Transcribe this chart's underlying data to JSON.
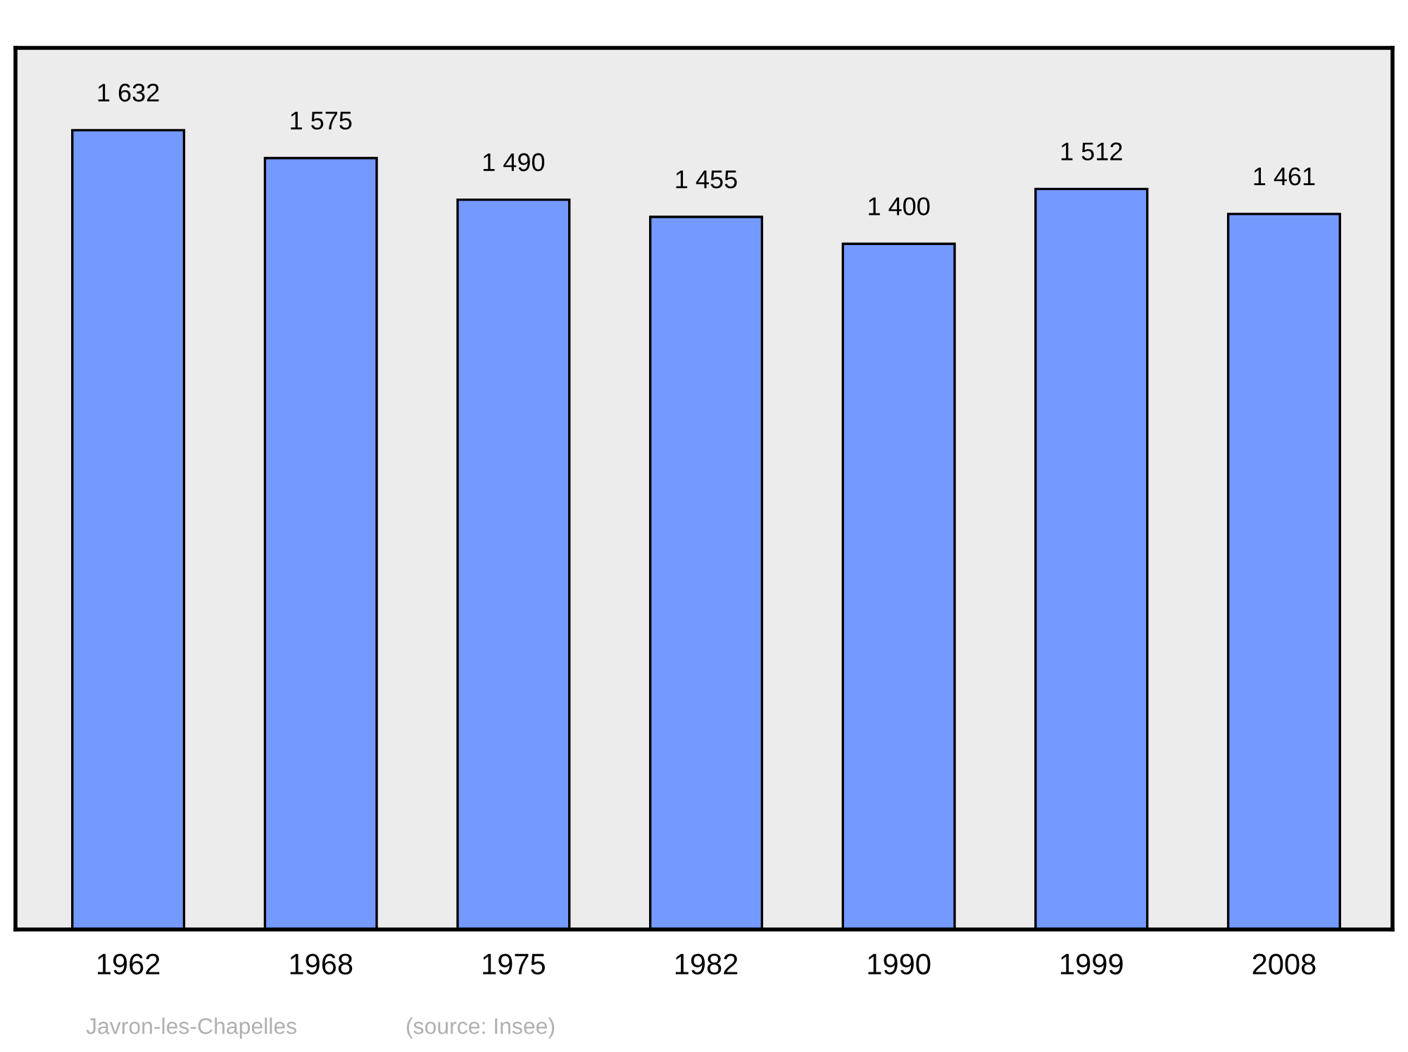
{
  "chart_data": {
    "type": "bar",
    "categories": [
      "1962",
      "1968",
      "1975",
      "1982",
      "1990",
      "1999",
      "2008"
    ],
    "values": [
      1632,
      1575,
      1490,
      1455,
      1400,
      1512,
      1461
    ],
    "value_labels": [
      "1 632",
      "1 575",
      "1 490",
      "1 455",
      "1 400",
      "1 512",
      "1 461"
    ],
    "color": "#7499ff",
    "ylim": [
      0,
      1800
    ],
    "tick_labels": "x",
    "grid": false,
    "legend": false,
    "annotations": [
      "Javron-les-Chapelles",
      "(source: Insee)"
    ]
  }
}
